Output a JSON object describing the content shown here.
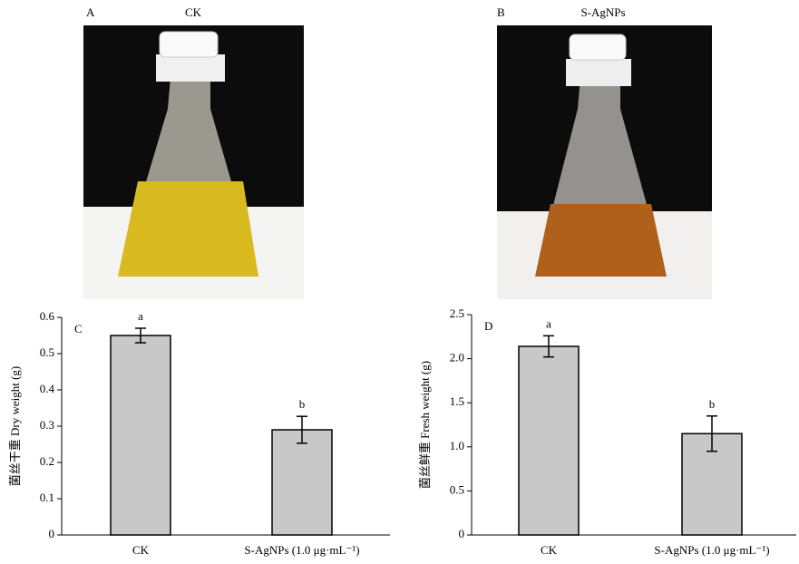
{
  "photos": [
    {
      "label": "A",
      "title": "CK"
    },
    {
      "label": "B",
      "title": "S-AgNPs"
    }
  ],
  "chart_data": [
    {
      "type": "bar",
      "panel": "C",
      "ylabel": "菌丝干重 Dry weight (g)",
      "categories": [
        "CK",
        "S-AgNPs (1.0 μg·mL⁻¹)"
      ],
      "values": [
        0.55,
        0.29
      ],
      "errors": [
        0.02,
        0.037
      ],
      "annotations": [
        "a",
        "b"
      ],
      "color": "#c8c8c8",
      "ylim": [
        0,
        0.6
      ],
      "yticks": [
        0,
        0.1,
        0.2,
        0.3,
        0.4,
        0.5,
        0.6
      ]
    },
    {
      "type": "bar",
      "panel": "D",
      "ylabel": "菌丝鲜重 Fresh weight (g)",
      "categories": [
        "CK",
        "S-AgNPs (1.0 μg·mL⁻¹)"
      ],
      "values": [
        2.14,
        1.15
      ],
      "errors": [
        0.12,
        0.2
      ],
      "annotations": [
        "a",
        "b"
      ],
      "color": "#c8c8c8",
      "ylim": [
        0,
        2.5
      ],
      "yticks": [
        0,
        0.5,
        {
          "value": 1,
          "label": "1.0"
        },
        1.5,
        {
          "value": 2,
          "label": "2.0"
        },
        2.5
      ]
    }
  ]
}
